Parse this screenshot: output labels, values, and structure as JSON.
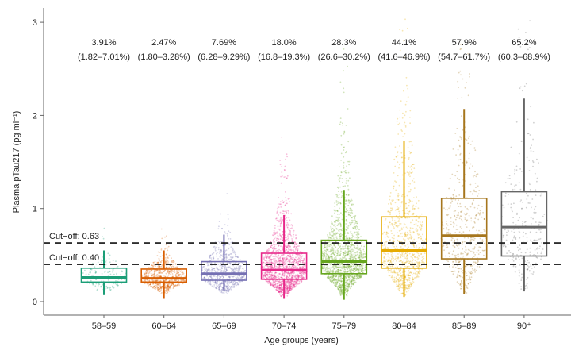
{
  "chart_data": {
    "type": "box",
    "xlabel": "Age groups (years)",
    "ylabel": "Plasma pTau217 (pg ml⁻¹)",
    "ylim": [
      -0.15,
      3.1
    ],
    "yticks": [
      0,
      1,
      2,
      3
    ],
    "grid": false,
    "categories": [
      "58–59",
      "60–64",
      "65–69",
      "70–74",
      "75–79",
      "80–84",
      "85–89",
      "90⁺"
    ],
    "colors": [
      "#1b9e77",
      "#d95f02",
      "#7570b3",
      "#e7298a",
      "#66a61e",
      "#e6ab02",
      "#a6761d",
      "#666666"
    ],
    "boxes": [
      {
        "whisker_low": 0.07,
        "q1": 0.21,
        "median": 0.26,
        "q3": 0.36,
        "whisker_high": 0.55
      },
      {
        "whisker_low": 0.03,
        "q1": 0.21,
        "median": 0.25,
        "q3": 0.35,
        "whisker_high": 0.55
      },
      {
        "whisker_low": 0.11,
        "q1": 0.23,
        "median": 0.3,
        "q3": 0.43,
        "whisker_high": 0.72
      },
      {
        "whisker_low": 0.03,
        "q1": 0.24,
        "median": 0.34,
        "q3": 0.52,
        "whisker_high": 0.93
      },
      {
        "whisker_low": 0.02,
        "q1": 0.3,
        "median": 0.43,
        "q3": 0.66,
        "whisker_high": 1.2
      },
      {
        "whisker_low": 0.05,
        "q1": 0.36,
        "median": 0.55,
        "q3": 0.91,
        "whisker_high": 1.73
      },
      {
        "whisker_low": 0.08,
        "q1": 0.46,
        "median": 0.71,
        "q3": 1.11,
        "whisker_high": 2.07
      },
      {
        "whisker_low": 0.11,
        "q1": 0.49,
        "median": 0.8,
        "q3": 1.18,
        "whisker_high": 2.18
      }
    ],
    "annotations": {
      "percent": [
        "3.91%",
        "2.47%",
        "7.69%",
        "18.0%",
        "28.3%",
        "44.1%",
        "57.9%",
        "65.2%"
      ],
      "ci": [
        "(1.82–7.01%)",
        "(1.80–3.28%)",
        "(6.28–9.29%)",
        "(16.8–19.3%)",
        "(26.6–30.2%)",
        "(41.6–46.9%)",
        "(54.7–61.7%)",
        "(60.3–68.9%)"
      ]
    },
    "cutoffs": [
      {
        "value": 0.63,
        "label": "Cut−off: 0.63"
      },
      {
        "value": 0.4,
        "label": "Cut−off: 0.40"
      }
    ]
  }
}
